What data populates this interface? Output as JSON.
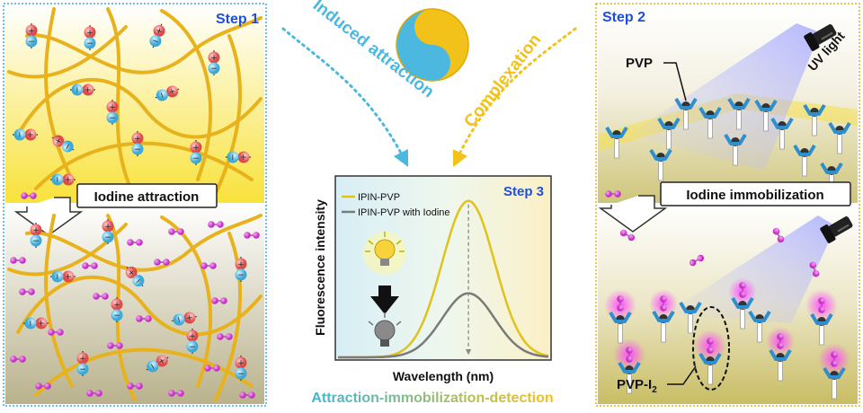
{
  "panel_left": {
    "step_label": "Step 1",
    "callout": "Iodine attraction"
  },
  "panel_right": {
    "step_label": "Step 2",
    "callout": "Iodine immobilization",
    "pvp_label": "PVP",
    "pvp_i2_label": "PVP-I",
    "pvp_i2_subscript": "2",
    "uv_label": "UV light"
  },
  "center": {
    "arrow_left_label": "Induced attraction",
    "arrow_right_label": "Complexation",
    "chart_title": "Step 3",
    "footer": "Attraction-immobilization-detection"
  },
  "colors": {
    "step_blue": "#1f4fd8",
    "arrow_cyan": "#4cb8e0",
    "arrow_yellow": "#f2c21b",
    "fiber": "#e8b21c",
    "iodine": "#d63ad6"
  },
  "chart_data": {
    "type": "line",
    "title": "Step 3",
    "xlabel": "Wavelength (nm)",
    "ylabel": "Fluorescence intensity",
    "xlim": [
      0,
      10
    ],
    "ylim": [
      0,
      1
    ],
    "series": [
      {
        "name": "IPIN-PVP",
        "color": "#e0c21a",
        "peak_x": 6.2,
        "peak_y": 0.88,
        "width": 1.25
      },
      {
        "name": "IPIN-PVP with Iodine",
        "color": "#7a7a7a",
        "peak_x": 6.2,
        "peak_y": 0.36,
        "width": 1.25
      }
    ],
    "annotation": "dashed arrow from IPIN-PVP peak down to IPIN-PVP with Iodine peak"
  }
}
